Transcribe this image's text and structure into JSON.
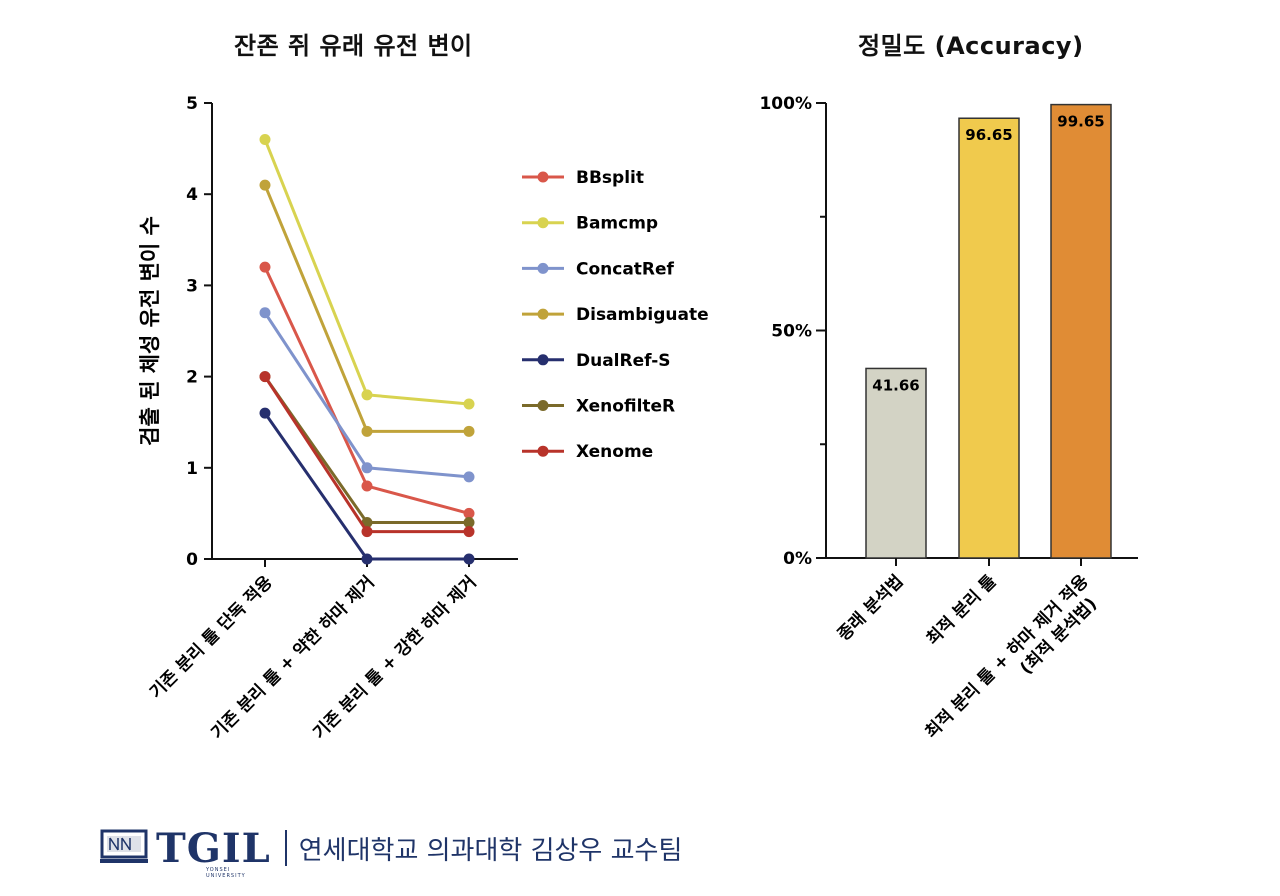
{
  "chart_data": [
    {
      "type": "line",
      "title": "잔존 쥐 유래 유전 변이",
      "ylabel": "검출 된 체성 유전 변이 수",
      "xlabel": "",
      "categories": [
        "기존 분리 툴 단독 적용",
        "기존 분리 툴 + 약한 하마 제거",
        "기존 분리 툴 + 강한 하마 제거"
      ],
      "ylim": [
        0,
        5
      ],
      "yticks": [
        "0",
        "1",
        "2",
        "3",
        "4",
        "5"
      ],
      "legend_position": "right",
      "series": [
        {
          "name": "BBsplit",
          "color": "#d9574a",
          "values": [
            3.2,
            0.8,
            0.5
          ]
        },
        {
          "name": "Bamcmp",
          "color": "#d8d350",
          "values": [
            4.6,
            1.8,
            1.7
          ]
        },
        {
          "name": "ConcatRef",
          "color": "#7f93cc",
          "values": [
            2.7,
            1.0,
            0.9
          ]
        },
        {
          "name": "Disambiguate",
          "color": "#c0a33a",
          "values": [
            4.1,
            1.4,
            1.4
          ]
        },
        {
          "name": "DualRef-S",
          "color": "#262f6e",
          "values": [
            1.6,
            0.0,
            0.0
          ]
        },
        {
          "name": "XenofilteR",
          "color": "#7a6a2a",
          "values": [
            2.0,
            0.4,
            0.4
          ]
        },
        {
          "name": "Xenome",
          "color": "#b8332a",
          "values": [
            2.0,
            0.3,
            0.3
          ]
        }
      ]
    },
    {
      "type": "bar",
      "title": "정밀도 (Accuracy)",
      "xlabel": "",
      "ylabel": "",
      "ylim": [
        0,
        100
      ],
      "yticks": [
        "0%",
        "50%",
        "100%"
      ],
      "categories": [
        "종래 분석법",
        "최적 분리 툴",
        "최적 분리 툴 + 하마 제거 적용\n(최적 분석법)"
      ],
      "values": [
        41.66,
        96.65,
        99.65
      ],
      "data_labels": [
        "41.66",
        "96.65",
        "99.65"
      ],
      "colors": [
        "#d3d3c5",
        "#f0ca4d",
        "#e08c35"
      ]
    }
  ],
  "footer": {
    "logo_text": "TGIL",
    "logo_sub": "YONSEI UNIVERSITY",
    "text": "연세대학교 의과대학 김상우 교수팀"
  }
}
